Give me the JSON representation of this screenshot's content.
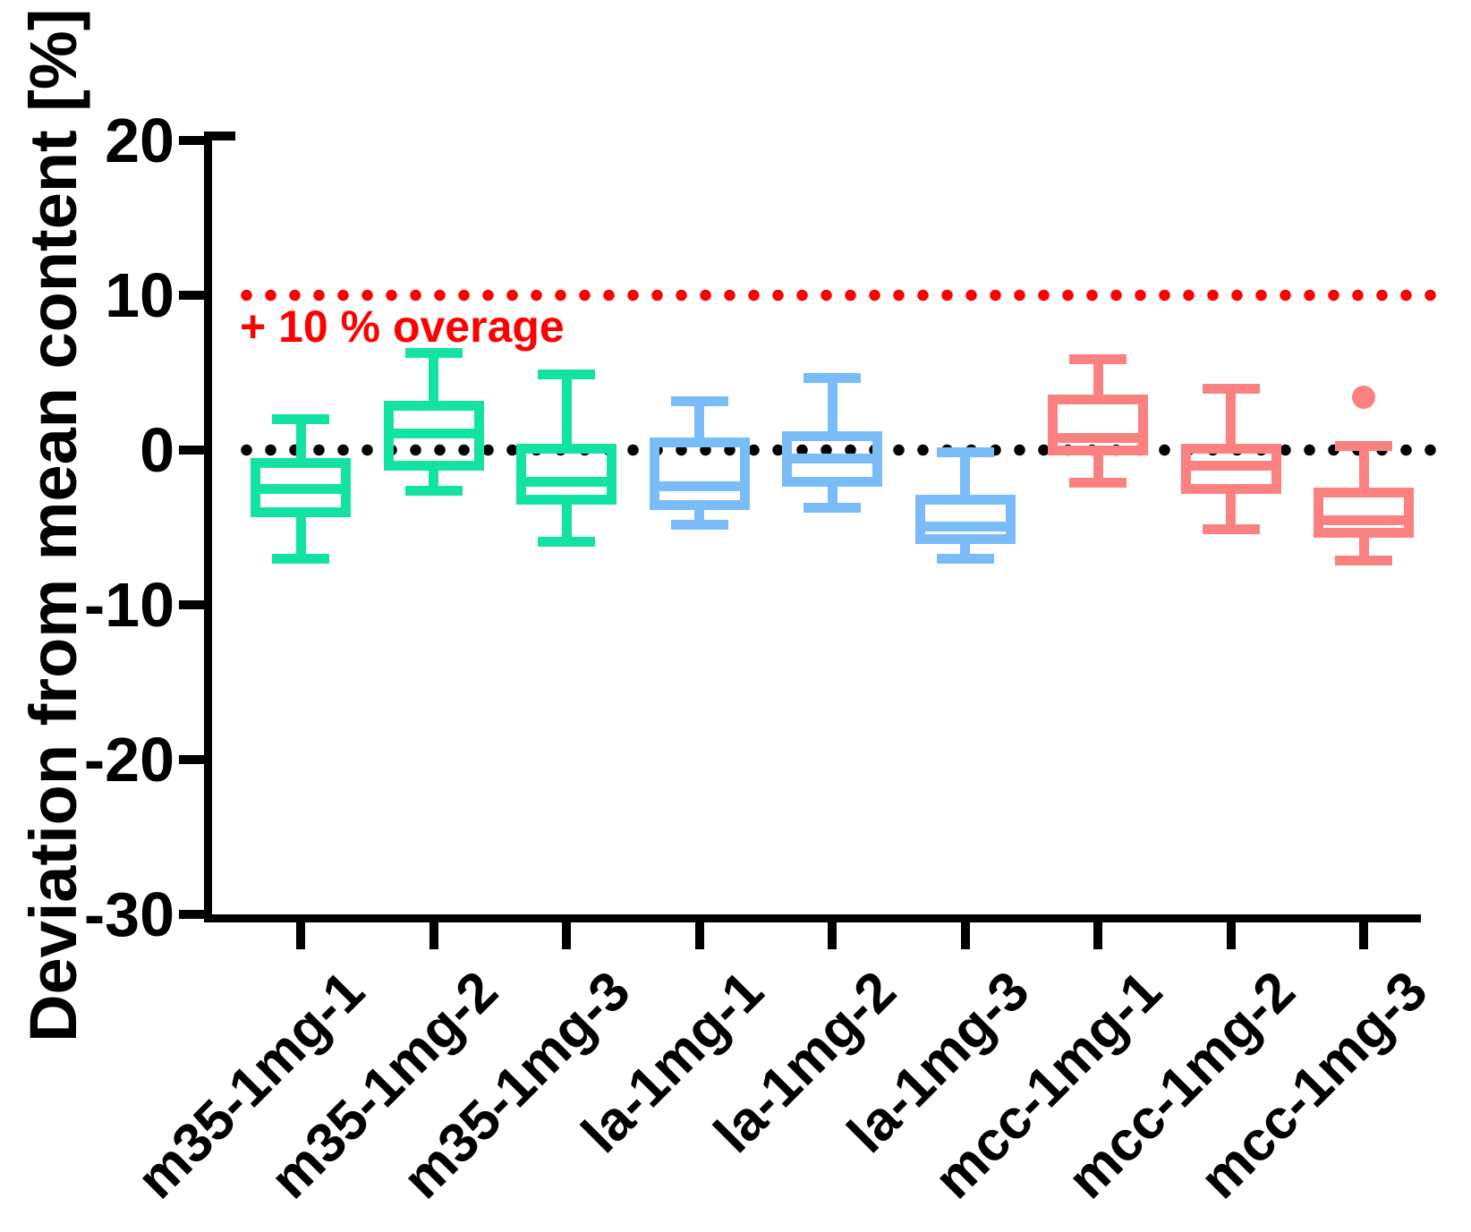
{
  "chart_data": {
    "type": "box",
    "title": "",
    "xlabel": "",
    "ylabel": "Deviation from mean content [%]",
    "ylim": [
      -30,
      20
    ],
    "yticks": [
      20,
      10,
      0,
      -10,
      -20,
      -30
    ],
    "grid": false,
    "legend": false,
    "reference_lines": [
      {
        "value": 10,
        "style": "dotted",
        "color": "#FF0000",
        "label": "+ 10 % overage"
      },
      {
        "value": 0,
        "style": "dotted",
        "color": "#000000",
        "label": ""
      }
    ],
    "group_colors": {
      "m35": "#12E3A3",
      "la": "#7ABCF7",
      "mcc": "#FB8181"
    },
    "categories": [
      "m35-1mg-1",
      "m35-1mg-2",
      "m35-1mg-3",
      "la-1mg-1",
      "la-1mg-2",
      "la-1mg-3",
      "mcc-1mg-1",
      "mcc-1mg-2",
      "mcc-1mg-3"
    ],
    "boxes": [
      {
        "category": "m35-1mg-1",
        "group": "m35",
        "color": "#12E3A3",
        "whisker_high": 2.0,
        "q3": -0.8,
        "median": -2.5,
        "q1": -4.0,
        "whisker_low": -7.0,
        "outliers": []
      },
      {
        "category": "m35-1mg-2",
        "group": "m35",
        "color": "#12E3A3",
        "whisker_high": 6.3,
        "q3": 2.9,
        "median": 1.1,
        "q1": -1.0,
        "whisker_low": -2.6,
        "outliers": []
      },
      {
        "category": "m35-1mg-3",
        "group": "m35",
        "color": "#12E3A3",
        "whisker_high": 4.9,
        "q3": 0.1,
        "median": -2.0,
        "q1": -3.2,
        "whisker_low": -5.9,
        "outliers": []
      },
      {
        "category": "la-1mg-1",
        "group": "la",
        "color": "#7ABCF7",
        "whisker_high": 3.2,
        "q3": 0.5,
        "median": -2.3,
        "q1": -3.5,
        "whisker_low": -4.8,
        "outliers": []
      },
      {
        "category": "la-1mg-2",
        "group": "la",
        "color": "#7ABCF7",
        "whisker_high": 4.7,
        "q3": 0.9,
        "median": -0.5,
        "q1": -2.0,
        "whisker_low": -3.7,
        "outliers": []
      },
      {
        "category": "la-1mg-3",
        "group": "la",
        "color": "#7ABCF7",
        "whisker_high": -0.1,
        "q3": -3.2,
        "median": -4.9,
        "q1": -5.7,
        "whisker_low": -7.0,
        "outliers": []
      },
      {
        "category": "mcc-1mg-1",
        "group": "mcc",
        "color": "#FB8181",
        "whisker_high": 5.9,
        "q3": 3.3,
        "median": 0.8,
        "q1": 0.0,
        "whisker_low": -2.1,
        "outliers": []
      },
      {
        "category": "mcc-1mg-2",
        "group": "mcc",
        "color": "#FB8181",
        "whisker_high": 4.0,
        "q3": 0.1,
        "median": -1.0,
        "q1": -2.5,
        "whisker_low": -5.1,
        "outliers": []
      },
      {
        "category": "mcc-1mg-3",
        "group": "mcc",
        "color": "#FB8181",
        "whisker_high": 0.3,
        "q3": -2.7,
        "median": -4.5,
        "q1": -5.3,
        "whisker_low": -7.1,
        "outliers": [
          3.4
        ]
      }
    ]
  }
}
